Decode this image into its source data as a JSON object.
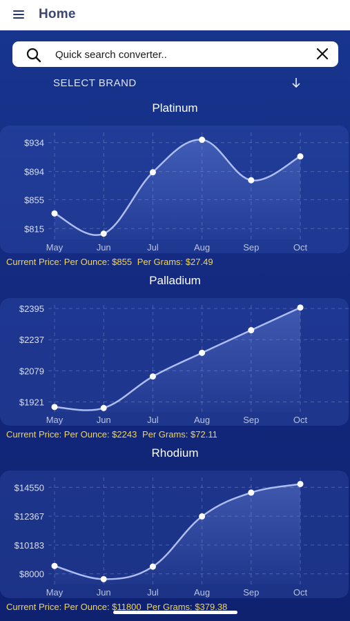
{
  "appbar": {
    "title": "Home",
    "menu_icon": "hamburger-menu-icon"
  },
  "search": {
    "placeholder": "Quick search converter..",
    "value": "",
    "search_icon": "search-icon",
    "clear_icon": "close-icon"
  },
  "brand_select": {
    "label": "SELECT BRAND",
    "arrow_icon": "arrow-down-icon"
  },
  "colors": {
    "accent_text": "#f5d64a",
    "background": "#13297e"
  },
  "charts": [
    {
      "title": "Platinum",
      "price_line": {
        "per_ounce": "Current Price: Per Ounce: $855",
        "per_grams": "Per Grams: $27.49"
      }
    },
    {
      "title": "Palladium",
      "price_line": {
        "per_ounce": "Current Price: Per Ounce: $2243",
        "per_grams": "Per Grams: $72.11"
      }
    },
    {
      "title": "Rhodium",
      "price_line": {
        "per_ounce": "Current Price: Per Ounce: $11800",
        "per_grams": "Per Grams: $379.38"
      }
    }
  ],
  "chart_data": [
    {
      "type": "line",
      "title": "Platinum",
      "categories": [
        "May",
        "Jun",
        "Jul",
        "Aug",
        "Sep",
        "Oct"
      ],
      "y_tick_labels": [
        "$815",
        "$855",
        "$894",
        "$934"
      ],
      "y_ticks": [
        815,
        855,
        894,
        934
      ],
      "values": [
        836,
        808,
        893,
        938,
        882,
        915
      ],
      "ylim": [
        800,
        950
      ],
      "grid": true
    },
    {
      "type": "line",
      "title": "Palladium",
      "categories": [
        "May",
        "Jun",
        "Jul",
        "Aug",
        "Sep",
        "Oct"
      ],
      "y_tick_labels": [
        "$1921",
        "$2079",
        "$2237",
        "$2395"
      ],
      "y_ticks": [
        1921,
        2079,
        2237,
        2395
      ],
      "values": [
        1895,
        1890,
        2050,
        2170,
        2285,
        2400
      ],
      "ylim": [
        1870,
        2420
      ],
      "grid": true
    },
    {
      "type": "line",
      "title": "Rhodium",
      "categories": [
        "May",
        "Jun",
        "Jul",
        "Aug",
        "Sep",
        "Oct"
      ],
      "y_tick_labels": [
        "$8000",
        "$10183",
        "$12367",
        "$14550"
      ],
      "y_ticks": [
        8000,
        10183,
        12367,
        14550
      ],
      "values": [
        8600,
        7600,
        8550,
        12350,
        14150,
        14800
      ],
      "ylim": [
        7200,
        15400
      ],
      "grid": true
    }
  ]
}
